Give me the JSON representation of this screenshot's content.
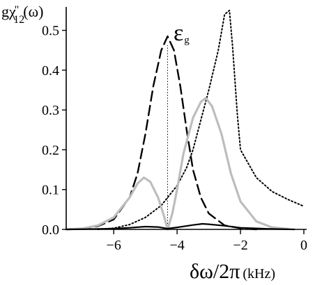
{
  "chart_data": {
    "type": "line",
    "ylabel": {
      "base": "gχ",
      "prime": "\"",
      "sub": "12",
      "arg": "(ω)"
    },
    "xlabel": {
      "main": "δω/2π",
      "unit": "(kHz)"
    },
    "annotation": {
      "symbol": "ε",
      "sub": "g",
      "x": -4.3
    },
    "xlim": [
      -7.5,
      0
    ],
    "ylim": [
      0,
      0.55
    ],
    "x_ticks": [
      -6,
      -4,
      -2,
      0
    ],
    "x_tick_labels": [
      "−6",
      "−4",
      "−2",
      "0"
    ],
    "y_ticks": [
      0.0,
      0.1,
      0.2,
      0.3,
      0.4,
      0.5
    ],
    "y_tick_labels": [
      "0.0",
      "0.1",
      "0.2",
      "0.3",
      "0.4",
      "0.5"
    ],
    "grid": false,
    "colors": {
      "black": "#000000",
      "gray": "#bdbdbd"
    },
    "series": [
      {
        "style": "dashed",
        "color": "#000000",
        "x": [
          -7.5,
          -7.0,
          -6.5,
          -6.0,
          -5.5,
          -5.25,
          -5.0,
          -4.75,
          -4.5,
          -4.3,
          -4.1,
          -3.9,
          -3.7,
          -3.5,
          -3.25,
          -3.0,
          -2.5,
          -2.0,
          -1.5
        ],
        "y": [
          0.0,
          0.002,
          0.008,
          0.025,
          0.08,
          0.14,
          0.24,
          0.36,
          0.45,
          0.485,
          0.45,
          0.36,
          0.25,
          0.15,
          0.08,
          0.04,
          0.01,
          0.003,
          0.0
        ]
      },
      {
        "style": "dotted",
        "color": "#000000",
        "x": [
          -6.5,
          -6.0,
          -5.5,
          -5.0,
          -4.5,
          -4.0,
          -3.7,
          -3.5,
          -3.0,
          -2.7,
          -2.5,
          -2.35,
          -2.25,
          -2.1,
          -2.0,
          -1.5,
          -1.0,
          -0.5,
          0.0
        ],
        "y": [
          0.0,
          0.003,
          0.012,
          0.03,
          0.06,
          0.11,
          0.155,
          0.2,
          0.35,
          0.45,
          0.54,
          0.55,
          0.46,
          0.29,
          0.2,
          0.13,
          0.095,
          0.075,
          0.058
        ]
      },
      {
        "style": "solid",
        "color": "#bdbdbd",
        "x": [
          -7.5,
          -7.0,
          -6.5,
          -6.0,
          -5.5,
          -5.25,
          -5.05,
          -4.85,
          -4.6,
          -4.4,
          -4.3,
          -4.15,
          -4.0,
          -3.8,
          -3.5,
          -3.25,
          -3.1,
          -2.9,
          -2.6,
          -2.3,
          -2.0,
          -1.5,
          -1.0,
          -0.5
        ],
        "y": [
          0.0,
          0.002,
          0.01,
          0.03,
          0.08,
          0.115,
          0.13,
          0.12,
          0.08,
          0.03,
          0.0,
          0.04,
          0.1,
          0.19,
          0.28,
          0.32,
          0.33,
          0.31,
          0.24,
          0.14,
          0.07,
          0.02,
          0.005,
          0.001
        ]
      },
      {
        "style": "solid",
        "color": "#000000",
        "x": [
          -7.5,
          -6.5,
          -6.0,
          -5.5,
          -5.0,
          -4.6,
          -4.3,
          -4.0,
          -3.5,
          -3.2,
          -3.0,
          -2.5,
          -2.0,
          -1.0,
          -0.3
        ],
        "y": [
          0.0,
          0.001,
          0.002,
          0.004,
          0.007,
          0.006,
          0.002,
          0.005,
          0.011,
          0.014,
          0.013,
          0.009,
          0.004,
          0.001,
          0.0
        ]
      }
    ]
  }
}
